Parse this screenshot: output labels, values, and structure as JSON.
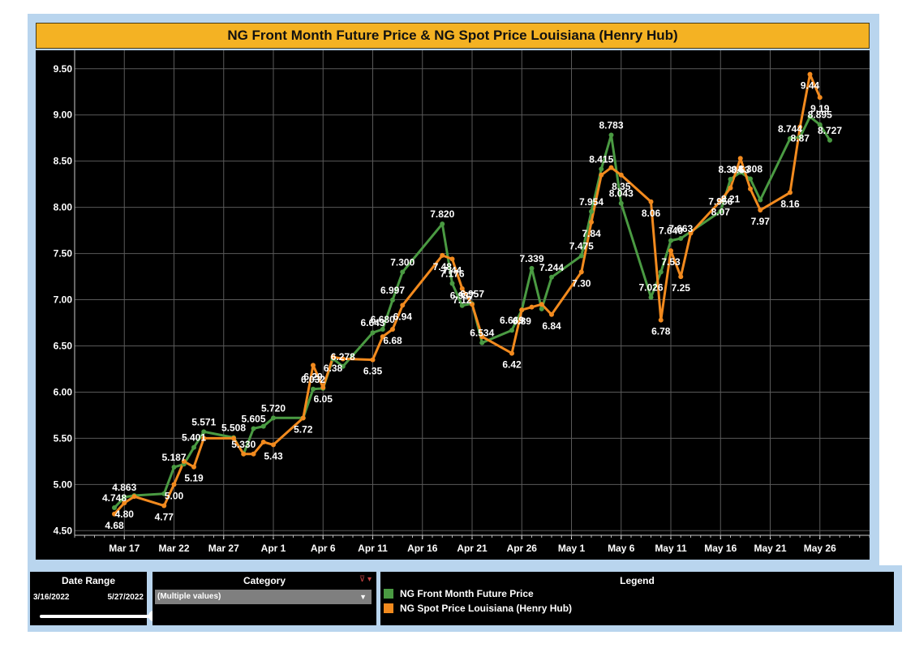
{
  "colors": {
    "front_month": "#4a9a42",
    "spot": "#f28a1e",
    "title_bg": "#f4b223",
    "frame": "#b9d5ee"
  },
  "filters": {
    "date_range": {
      "title": "Date Range",
      "start": "3/16/2022",
      "end": "5/27/2022"
    },
    "category": {
      "title": "Category",
      "selected": "(Multiple values)"
    }
  },
  "legend": {
    "title": "Legend",
    "items": [
      {
        "label": "NG Front Month Future Price",
        "color": "#4a9a42"
      },
      {
        "label": "NG Spot Price Louisiana (Henry Hub)",
        "color": "#f28a1e"
      }
    ]
  },
  "chart_data": {
    "type": "line",
    "title": "NG Front Month Future Price & NG Spot Price Louisiana (Henry Hub)",
    "xlabel": "",
    "ylabel": "",
    "ylim": [
      4.45,
      9.7
    ],
    "xlim": [
      "2022-03-12",
      "2022-05-31"
    ],
    "yticks": [
      "4.50",
      "5.00",
      "5.50",
      "6.00",
      "6.50",
      "7.00",
      "7.50",
      "8.00",
      "8.50",
      "9.00",
      "9.50"
    ],
    "xticks": [
      {
        "date": "2022-03-17",
        "label": "Mar 17"
      },
      {
        "date": "2022-03-22",
        "label": "Mar 22"
      },
      {
        "date": "2022-03-27",
        "label": "Mar 27"
      },
      {
        "date": "2022-04-01",
        "label": "Apr 1"
      },
      {
        "date": "2022-04-06",
        "label": "Apr 6"
      },
      {
        "date": "2022-04-11",
        "label": "Apr 11"
      },
      {
        "date": "2022-04-16",
        "label": "Apr 16"
      },
      {
        "date": "2022-04-21",
        "label": "Apr 21"
      },
      {
        "date": "2022-04-26",
        "label": "Apr 26"
      },
      {
        "date": "2022-05-01",
        "label": "May 1"
      },
      {
        "date": "2022-05-06",
        "label": "May 6"
      },
      {
        "date": "2022-05-11",
        "label": "May 11"
      },
      {
        "date": "2022-05-16",
        "label": "May 16"
      },
      {
        "date": "2022-05-21",
        "label": "May 21"
      },
      {
        "date": "2022-05-26",
        "label": "May 26"
      }
    ],
    "grid": true,
    "legend_position": "bottom",
    "series": [
      {
        "name": "NG Front Month Future Price",
        "color": "#4a9a42",
        "points": [
          {
            "x": "2022-03-16",
            "y": 4.748,
            "label": "4.748"
          },
          {
            "x": "2022-03-17",
            "y": 4.863,
            "label": "4.863"
          },
          {
            "x": "2022-03-18",
            "y": 4.88
          },
          {
            "x": "2022-03-21",
            "y": 4.9
          },
          {
            "x": "2022-03-22",
            "y": 5.187,
            "label": "5.187"
          },
          {
            "x": "2022-03-23",
            "y": 5.22
          },
          {
            "x": "2022-03-24",
            "y": 5.401,
            "label": "5.401"
          },
          {
            "x": "2022-03-25",
            "y": 5.571,
            "label": "5.571"
          },
          {
            "x": "2022-03-28",
            "y": 5.508,
            "label": "5.508"
          },
          {
            "x": "2022-03-29",
            "y": 5.33,
            "label": "5.330"
          },
          {
            "x": "2022-03-30",
            "y": 5.605,
            "label": "5.605"
          },
          {
            "x": "2022-03-31",
            "y": 5.63
          },
          {
            "x": "2022-04-01",
            "y": 5.72,
            "label": "5.720"
          },
          {
            "x": "2022-04-04",
            "y": 5.72
          },
          {
            "x": "2022-04-05",
            "y": 6.032,
            "label": "6.032"
          },
          {
            "x": "2022-04-06",
            "y": 6.04
          },
          {
            "x": "2022-04-07",
            "y": 6.36
          },
          {
            "x": "2022-04-08",
            "y": 6.278,
            "label": "6.278"
          },
          {
            "x": "2022-04-11",
            "y": 6.643,
            "label": "6.643"
          },
          {
            "x": "2022-04-12",
            "y": 6.68,
            "label": "6.680"
          },
          {
            "x": "2022-04-13",
            "y": 6.997,
            "label": "6.997"
          },
          {
            "x": "2022-04-14",
            "y": 7.3,
            "label": "7.300"
          },
          {
            "x": "2022-04-18",
            "y": 7.82,
            "label": "7.820"
          },
          {
            "x": "2022-04-19",
            "y": 7.176,
            "label": "7.176"
          },
          {
            "x": "2022-04-20",
            "y": 6.937,
            "label": "6.937"
          },
          {
            "x": "2022-04-21",
            "y": 6.957,
            "label": "6.957"
          },
          {
            "x": "2022-04-22",
            "y": 6.534,
            "label": "6.534"
          },
          {
            "x": "2022-04-25",
            "y": 6.669,
            "label": "6.669"
          },
          {
            "x": "2022-04-26",
            "y": 6.89
          },
          {
            "x": "2022-04-27",
            "y": 7.339,
            "label": "7.339"
          },
          {
            "x": "2022-04-28",
            "y": 6.9
          },
          {
            "x": "2022-04-29",
            "y": 7.244,
            "label": "7.244"
          },
          {
            "x": "2022-05-02",
            "y": 7.475,
            "label": "7.475"
          },
          {
            "x": "2022-05-03",
            "y": 7.954,
            "label": "7.954"
          },
          {
            "x": "2022-05-04",
            "y": 8.415,
            "label": "8.415"
          },
          {
            "x": "2022-05-05",
            "y": 8.783,
            "label": "8.783"
          },
          {
            "x": "2022-05-06",
            "y": 8.043,
            "label": "8.043"
          },
          {
            "x": "2022-05-09",
            "y": 7.026,
            "label": "7.026"
          },
          {
            "x": "2022-05-10",
            "y": 7.3
          },
          {
            "x": "2022-05-11",
            "y": 7.64,
            "label": "7.640"
          },
          {
            "x": "2022-05-12",
            "y": 7.663,
            "label": "7.663"
          },
          {
            "x": "2022-05-16",
            "y": 7.956,
            "label": "7.956"
          },
          {
            "x": "2022-05-17",
            "y": 8.304,
            "label": "8.304"
          },
          {
            "x": "2022-05-18",
            "y": 8.38
          },
          {
            "x": "2022-05-19",
            "y": 8.308,
            "label": "8.308"
          },
          {
            "x": "2022-05-20",
            "y": 8.08
          },
          {
            "x": "2022-05-23",
            "y": 8.744,
            "label": "8.744"
          },
          {
            "x": "2022-05-24",
            "y": 8.76
          },
          {
            "x": "2022-05-25",
            "y": 8.98
          },
          {
            "x": "2022-05-26",
            "y": 8.895,
            "label": "8.895"
          },
          {
            "x": "2022-05-27",
            "y": 8.727,
            "label": "8.727"
          }
        ]
      },
      {
        "name": "NG Spot Price Louisiana (Henry Hub)",
        "color": "#f28a1e",
        "points": [
          {
            "x": "2022-03-16",
            "y": 4.68,
            "label": "4.68"
          },
          {
            "x": "2022-03-17",
            "y": 4.8,
            "label": "4.80"
          },
          {
            "x": "2022-03-18",
            "y": 4.87
          },
          {
            "x": "2022-03-21",
            "y": 4.77,
            "label": "4.77"
          },
          {
            "x": "2022-03-22",
            "y": 5.0,
            "label": "5.00"
          },
          {
            "x": "2022-03-23",
            "y": 5.25
          },
          {
            "x": "2022-03-24",
            "y": 5.19,
            "label": "5.19"
          },
          {
            "x": "2022-03-25",
            "y": 5.5
          },
          {
            "x": "2022-03-28",
            "y": 5.5
          },
          {
            "x": "2022-03-29",
            "y": 5.33
          },
          {
            "x": "2022-03-30",
            "y": 5.33
          },
          {
            "x": "2022-03-31",
            "y": 5.46
          },
          {
            "x": "2022-04-01",
            "y": 5.43,
            "label": "5.43"
          },
          {
            "x": "2022-04-04",
            "y": 5.72,
            "label": "5.72"
          },
          {
            "x": "2022-04-05",
            "y": 6.29,
            "label": "6.29"
          },
          {
            "x": "2022-04-06",
            "y": 6.05,
            "label": "6.05"
          },
          {
            "x": "2022-04-07",
            "y": 6.38,
            "label": "6.38"
          },
          {
            "x": "2022-04-08",
            "y": 6.36
          },
          {
            "x": "2022-04-11",
            "y": 6.35,
            "label": "6.35"
          },
          {
            "x": "2022-04-12",
            "y": 6.6
          },
          {
            "x": "2022-04-13",
            "y": 6.68,
            "label": "6.68"
          },
          {
            "x": "2022-04-14",
            "y": 6.94,
            "label": "6.94"
          },
          {
            "x": "2022-04-18",
            "y": 7.48,
            "label": "7.48"
          },
          {
            "x": "2022-04-19",
            "y": 7.44,
            "label": "7.44"
          },
          {
            "x": "2022-04-20",
            "y": 7.12,
            "label": "7.12"
          },
          {
            "x": "2022-04-21",
            "y": 6.95
          },
          {
            "x": "2022-04-22",
            "y": 6.6
          },
          {
            "x": "2022-04-25",
            "y": 6.42,
            "label": "6.42"
          },
          {
            "x": "2022-04-26",
            "y": 6.89,
            "label": "6.89"
          },
          {
            "x": "2022-04-27",
            "y": 6.92
          },
          {
            "x": "2022-04-28",
            "y": 6.95
          },
          {
            "x": "2022-04-29",
            "y": 6.84,
            "label": "6.84"
          },
          {
            "x": "2022-05-02",
            "y": 7.3,
            "label": "7.30"
          },
          {
            "x": "2022-05-03",
            "y": 7.84,
            "label": "7.84"
          },
          {
            "x": "2022-05-04",
            "y": 8.35
          },
          {
            "x": "2022-05-05",
            "y": 8.43
          },
          {
            "x": "2022-05-06",
            "y": 8.35,
            "label": "8.35"
          },
          {
            "x": "2022-05-09",
            "y": 8.06,
            "label": "8.06"
          },
          {
            "x": "2022-05-10",
            "y": 6.78,
            "label": "6.78"
          },
          {
            "x": "2022-05-11",
            "y": 7.53,
            "label": "7.53"
          },
          {
            "x": "2022-05-12",
            "y": 7.25,
            "label": "7.25"
          },
          {
            "x": "2022-05-13",
            "y": 7.72
          },
          {
            "x": "2022-05-16",
            "y": 8.07,
            "label": "8.07"
          },
          {
            "x": "2022-05-17",
            "y": 8.21,
            "label": "8.21"
          },
          {
            "x": "2022-05-18",
            "y": 8.53,
            "label": "8.53"
          },
          {
            "x": "2022-05-19",
            "y": 8.2
          },
          {
            "x": "2022-05-20",
            "y": 7.97,
            "label": "7.97"
          },
          {
            "x": "2022-05-23",
            "y": 8.16,
            "label": "8.16"
          },
          {
            "x": "2022-05-24",
            "y": 8.87,
            "label": "8.87"
          },
          {
            "x": "2022-05-25",
            "y": 9.44,
            "label": "9.44"
          },
          {
            "x": "2022-05-26",
            "y": 9.19,
            "label": "9.19"
          }
        ]
      }
    ]
  }
}
